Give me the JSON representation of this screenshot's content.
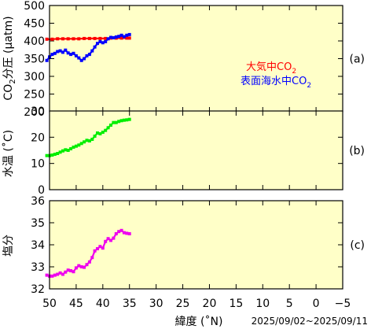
{
  "chart_data": {
    "type": "scatter",
    "period": "2025/09/02~2025/09/11",
    "xlabel": "緯度 (˚N)",
    "xlim": [
      50,
      -5
    ],
    "xticks": [
      50,
      45,
      40,
      35,
      30,
      25,
      20,
      15,
      10,
      5,
      0,
      -5
    ],
    "xtick_labels": [
      "50",
      "45",
      "40",
      "35",
      "30",
      "25",
      "20",
      "15",
      "10",
      "5",
      "0",
      "−5"
    ],
    "colors": {
      "plot_bg": "#ffffc8",
      "red": "#ff0000",
      "blue": "#0000ff",
      "green": "#00ee00",
      "magenta": "#ee00ee"
    },
    "panels": [
      {
        "tag": "(a)",
        "ylabel": "CO2分圧 (μatm)",
        "ylim": [
          200,
          500
        ],
        "yticks": [
          200,
          250,
          300,
          350,
          400,
          450,
          500
        ],
        "series": [
          {
            "name": "大気中CO2",
            "color": "#ff0000",
            "x": [
              50.5,
              49.5,
              48.5,
              47.5,
              46.5,
              45.5,
              44.5,
              43.5,
              42.5,
              41.5,
              40.5,
              39.5,
              38.5,
              37.5,
              36.5,
              35.5,
              35.0
            ],
            "y": [
              405,
              405,
              406,
              406,
              406,
              406,
              406,
              407,
              407,
              407,
              407,
              407,
              408,
              408,
              408,
              408,
              408
            ]
          },
          {
            "name": "表面海水中CO2",
            "color": "#0000ff",
            "x": [
              50.5,
              50.0,
              49.5,
              49.0,
              48.5,
              48.0,
              47.5,
              47.0,
              46.5,
              46.0,
              45.5,
              45.0,
              44.5,
              44.0,
              43.5,
              43.0,
              42.5,
              42.0,
              41.5,
              41.0,
              40.5,
              40.0,
              39.5,
              39.0,
              38.5,
              38.0,
              37.5,
              37.0,
              36.5,
              36.0,
              35.5,
              35.0
            ],
            "y": [
              345,
              355,
              362,
              365,
              370,
              372,
              368,
              374,
              366,
              362,
              365,
              358,
              352,
              345,
              350,
              358,
              362,
              372,
              383,
              393,
              398,
              395,
              398,
              406,
              410,
              409,
              411,
              413,
              416,
              412,
              416,
              418
            ]
          }
        ]
      },
      {
        "tag": "(b)",
        "ylabel": "水温 (˚C)",
        "ylim": [
          0,
          30
        ],
        "yticks": [
          0,
          10,
          20,
          30
        ],
        "series": [
          {
            "name": "",
            "color": "#00ee00",
            "x": [
              50.5,
              50.0,
              49.5,
              49.0,
              48.5,
              48.0,
              47.5,
              47.0,
              46.5,
              46.0,
              45.5,
              45.0,
              44.5,
              44.0,
              43.5,
              43.0,
              42.5,
              42.0,
              41.5,
              41.0,
              40.5,
              40.0,
              39.5,
              39.0,
              38.5,
              38.0,
              37.5,
              37.0,
              36.5,
              36.0,
              35.5,
              35.0
            ],
            "y": [
              13.0,
              13.0,
              13.2,
              13.5,
              13.8,
              14.3,
              14.8,
              15.2,
              15.0,
              15.6,
              16.2,
              16.6,
              17.0,
              17.6,
              18.2,
              18.8,
              18.6,
              19.2,
              20.4,
              21.6,
              21.3,
              21.9,
              22.6,
              23.6,
              24.6,
              25.6,
              25.6,
              26.0,
              26.3,
              26.5,
              26.6,
              26.8
            ]
          }
        ]
      },
      {
        "tag": "(c)",
        "ylabel": "塩分",
        "ylim": [
          32,
          36
        ],
        "yticks": [
          32,
          33,
          34,
          35,
          36
        ],
        "series": [
          {
            "name": "",
            "color": "#ee00ee",
            "x": [
              50.5,
              50.0,
              49.5,
              49.0,
              48.5,
              48.0,
              47.5,
              47.0,
              46.5,
              46.0,
              45.5,
              45.0,
              44.5,
              44.0,
              43.5,
              43.0,
              42.5,
              42.0,
              41.5,
              41.0,
              40.5,
              40.0,
              39.5,
              39.0,
              38.5,
              38.0,
              37.5,
              37.0,
              36.5,
              36.0,
              35.5,
              35.0
            ],
            "y": [
              32.62,
              32.58,
              32.58,
              32.62,
              32.66,
              32.72,
              32.66,
              32.76,
              32.85,
              32.82,
              32.78,
              32.95,
              33.05,
              33.0,
              32.98,
              33.1,
              33.22,
              33.42,
              33.72,
              33.82,
              33.92,
              33.85,
              34.15,
              34.28,
              34.2,
              34.3,
              34.5,
              34.6,
              34.65,
              34.55,
              34.52,
              34.5
            ]
          }
        ]
      }
    ]
  },
  "legend": {
    "atm_label": "大気中CO",
    "atm_sub": "2",
    "sea_label": "表面海水中CO",
    "sea_sub": "2"
  }
}
